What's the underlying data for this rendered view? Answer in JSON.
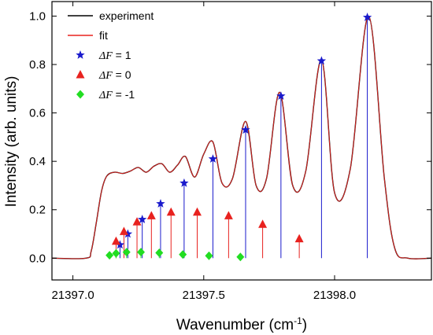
{
  "chart_data": {
    "type": "line",
    "xlabel": "Wavenumber (cm",
    "xlabel_sup": "-1",
    "xlabel_end": ")",
    "ylabel": "Intensity (arb. units)",
    "xlim": [
      21396.92,
      21398.37
    ],
    "ylim": [
      -0.09,
      1.06
    ],
    "x_ticks": [
      21397.0,
      21397.5,
      21398.0
    ],
    "x_tick_labels": [
      "21397.0",
      "21397.5",
      "21398.0"
    ],
    "y_ticks": [
      0.0,
      0.2,
      0.4,
      0.6,
      0.8,
      1.0
    ],
    "y_tick_labels": [
      "0.0",
      "0.2",
      "0.4",
      "0.6",
      "0.8",
      "1.0"
    ],
    "legend_position": "top-left",
    "legend": [
      {
        "kind": "line",
        "label": "experiment",
        "color": "#000000"
      },
      {
        "kind": "line",
        "label": "fit",
        "color": "#e8221f"
      },
      {
        "kind": "marker",
        "symbol": "star",
        "label_sym": "ΔF",
        "label_rest": " = 1",
        "color": "#1a1acc"
      },
      {
        "kind": "marker",
        "symbol": "triangle",
        "label_sym": "ΔF",
        "label_rest": " = 0",
        "color": "#e8221f"
      },
      {
        "kind": "marker",
        "symbol": "diamond",
        "label_sym": "ΔF",
        "label_rest": " = -1",
        "color": "#22dd22"
      }
    ],
    "baseline": 0.0,
    "profile": {
      "note_free": true,
      "x": [
        21396.92,
        21397.05,
        21397.07,
        21397.09,
        21397.11,
        21397.13,
        21397.16,
        21397.19,
        21397.22,
        21397.25,
        21397.28,
        21397.31,
        21397.34,
        21397.37,
        21397.4,
        21397.43,
        21397.465,
        21397.5,
        21397.535,
        21397.57,
        21397.61,
        21397.66,
        21397.7,
        21397.74,
        21397.79,
        21397.84,
        21397.89,
        21397.95,
        21398.0,
        21398.06,
        21398.13,
        21398.19,
        21398.23,
        21398.28,
        21398.37
      ],
      "y": [
        0.0,
        0.0,
        0.03,
        0.15,
        0.28,
        0.34,
        0.355,
        0.35,
        0.36,
        0.375,
        0.355,
        0.38,
        0.39,
        0.355,
        0.385,
        0.42,
        0.335,
        0.43,
        0.48,
        0.31,
        0.33,
        0.565,
        0.3,
        0.33,
        0.685,
        0.3,
        0.36,
        0.82,
        0.27,
        0.37,
        1.0,
        0.33,
        0.04,
        0.0,
        0.0
      ]
    },
    "series": [
      {
        "name": "ΔF = 1",
        "symbol": "star",
        "color": "#1a1acc",
        "x": [
          21397.18,
          21397.21,
          21397.265,
          21397.335,
          21397.425,
          21397.535,
          21397.66,
          21397.795,
          21397.95,
          21398.125
        ],
        "y": [
          0.055,
          0.1,
          0.16,
          0.225,
          0.31,
          0.41,
          0.53,
          0.67,
          0.815,
          0.995
        ]
      },
      {
        "name": "ΔF = 0",
        "symbol": "triangle",
        "color": "#e8221f",
        "x": [
          21397.165,
          21397.195,
          21397.245,
          21397.3,
          21397.375,
          21397.475,
          21397.595,
          21397.725,
          21397.865
        ],
        "y": [
          0.07,
          0.11,
          0.15,
          0.175,
          0.19,
          0.19,
          0.175,
          0.14,
          0.08
        ]
      },
      {
        "name": "ΔF = -1",
        "symbol": "diamond",
        "color": "#22dd22",
        "x": [
          21397.14,
          21397.165,
          21397.205,
          21397.26,
          21397.33,
          21397.42,
          21397.52,
          21397.64
        ],
        "y": [
          0.012,
          0.02,
          0.025,
          0.025,
          0.022,
          0.015,
          0.01,
          0.005
        ]
      }
    ]
  }
}
